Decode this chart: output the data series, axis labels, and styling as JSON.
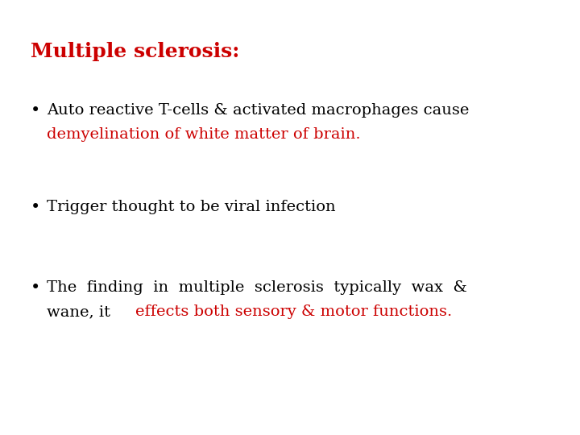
{
  "background_color": "#ffffff",
  "title": "Multiple sclerosis:",
  "title_color": "#cc0000",
  "title_fontsize": 18,
  "bullet1_black": "Auto reactive T-cells & activated macrophages cause",
  "bullet1_red": "demyelination of white matter of brain.",
  "bullet2_black": "Trigger thought to be viral infection",
  "bullet3_line1_black": "The  finding  in  multiple  sclerosis  typically  wax  &",
  "bullet3_line2_black": "wane, it ",
  "bullet3_line2_red": "effects both sensory & motor functions.",
  "text_color_black": "#000000",
  "text_color_red": "#cc0000",
  "fontsize": 14,
  "font_family": "DejaVu Serif"
}
